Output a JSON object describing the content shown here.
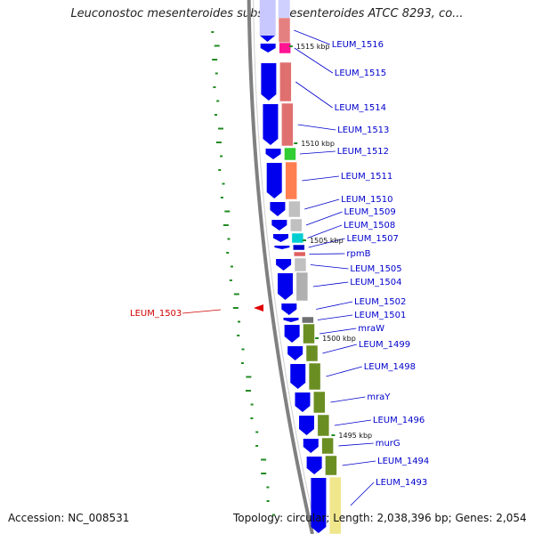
{
  "title": "Leuconostoc mesenteroides subsp. mesenteroides ATCC 8293, co...",
  "footer": {
    "accession": "Accession: NC_008531",
    "summary": "Topology: circular; Length: 2,038,396 bp; Genes: 2,054"
  },
  "colors": {
    "cds_arrow": "#0000ee",
    "backbone": "#808080",
    "gc_tick": "#228b22",
    "label_blue": "#0000cc",
    "label_red": "#d00000",
    "marker": "#e00000"
  },
  "scale_labels": [
    "1515 kbp",
    "1510 kbp",
    "1505 kbp",
    "1500 kbp",
    "1495 kbp"
  ],
  "genes": [
    {
      "label": "LEUM_1516",
      "color": "#e58080"
    },
    {
      "label": "LEUM_1515",
      "color": "#ff1493"
    },
    {
      "label": "LEUM_1514",
      "color": "#e07070"
    },
    {
      "label": "LEUM_1513",
      "color": "#e07070"
    },
    {
      "label": "LEUM_1512",
      "color": "#32cd32"
    },
    {
      "label": "LEUM_1511",
      "color": "#ff7f50"
    },
    {
      "label": "LEUM_1510",
      "color": "#c0c0c0"
    },
    {
      "label": "LEUM_1509",
      "color": "#c0c0c0"
    },
    {
      "label": "LEUM_1508",
      "color": "#00ced1"
    },
    {
      "label": "LEUM_1507",
      "color": "#0000cd"
    },
    {
      "label": "rpmB",
      "color": "#e06060"
    },
    {
      "label": "LEUM_1505",
      "color": "#c0c0c0"
    },
    {
      "label": "LEUM_1504",
      "color": "#b0b0b0"
    },
    {
      "label": "LEUM_1502",
      "color": "#ffffff"
    },
    {
      "label": "LEUM_1501",
      "color": "#707070"
    },
    {
      "label": "mraW",
      "color": "#6b8e23"
    },
    {
      "label": "LEUM_1499",
      "color": "#6b8e23"
    },
    {
      "label": "LEUM_1498",
      "color": "#6b8e23"
    },
    {
      "label": "mraY",
      "color": "#6b8e23"
    },
    {
      "label": "LEUM_1496",
      "color": "#6b8e23"
    },
    {
      "label": "murG",
      "color": "#6b8e23"
    },
    {
      "label": "LEUM_1494",
      "color": "#6b8e23"
    },
    {
      "label": "LEUM_1493",
      "color": "#f0e68c"
    }
  ],
  "highlight": {
    "label": "LEUM_1503",
    "color": "#d00000"
  }
}
